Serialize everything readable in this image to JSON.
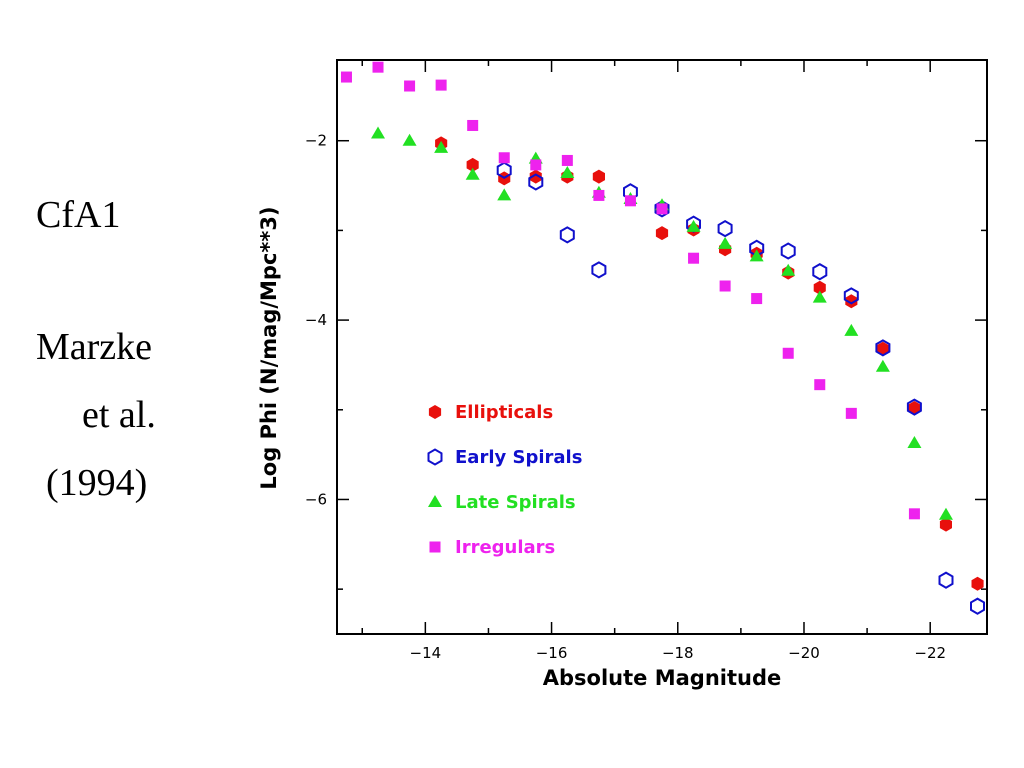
{
  "side_panel": {
    "line1": "CfA1",
    "line2": "Marzke",
    "line3": "et al.",
    "line4": "(1994)"
  },
  "chart_data": {
    "type": "scatter",
    "title": "",
    "xlabel": "Absolute Magnitude",
    "ylabel": "Log Phi (N/mag/Mpc**3)",
    "xlim": [
      -12.6,
      -22.9
    ],
    "ylim": [
      -7.5,
      -1.1
    ],
    "x_ticks": [
      -14,
      -16,
      -18,
      -20,
      -22
    ],
    "y_ticks": [
      -2,
      -4,
      -6
    ],
    "legend_position": "bottom-center-left",
    "series": [
      {
        "name": "Ellipticals",
        "marker": "filled-hexagon",
        "color": "#e8100c",
        "x": [
          -14.25,
          -14.75,
          -15.25,
          -15.75,
          -16.25,
          -16.75,
          -17.75,
          -18.25,
          -18.75,
          -19.25,
          -19.75,
          -20.25,
          -20.75,
          -21.25,
          -21.75,
          -22.25,
          -22.75
        ],
        "y": [
          -2.03,
          -2.27,
          -2.42,
          -2.4,
          -2.4,
          -2.4,
          -3.03,
          -2.99,
          -3.21,
          -3.26,
          -3.47,
          -3.64,
          -3.79,
          -4.32,
          -4.98,
          -6.28,
          -6.94
        ]
      },
      {
        "name": "Early Spirals",
        "marker": "open-hexagon",
        "color": "#1010cc",
        "x": [
          -15.25,
          -15.75,
          -16.25,
          -16.75,
          -17.25,
          -17.75,
          -18.25,
          -18.75,
          -19.25,
          -19.75,
          -20.25,
          -20.75,
          -21.25,
          -21.75,
          -22.25,
          -22.75
        ],
        "y": [
          -2.33,
          -2.46,
          -3.05,
          -3.44,
          -2.57,
          -2.76,
          -2.93,
          -2.98,
          -3.2,
          -3.23,
          -3.46,
          -3.73,
          -4.31,
          -4.97,
          -6.9,
          -7.19
        ]
      },
      {
        "name": "Late Spirals",
        "marker": "filled-triangle",
        "color": "#22e022",
        "x": [
          -13.25,
          -13.75,
          -14.25,
          -14.75,
          -15.25,
          -15.75,
          -16.25,
          -16.75,
          -17.25,
          -17.75,
          -18.25,
          -18.75,
          -19.25,
          -19.75,
          -20.25,
          -20.75,
          -21.25,
          -21.75,
          -22.25
        ],
        "y": [
          -1.92,
          -2.0,
          -2.08,
          -2.38,
          -2.61,
          -2.2,
          -2.36,
          -2.58,
          -2.65,
          -2.72,
          -2.96,
          -3.15,
          -3.29,
          -3.45,
          -3.75,
          -4.12,
          -4.52,
          -5.37,
          -6.17
        ]
      },
      {
        "name": "Irregulars",
        "marker": "filled-square",
        "color": "#ee22ee",
        "x": [
          -12.75,
          -13.25,
          -13.75,
          -14.25,
          -14.75,
          -15.25,
          -15.75,
          -16.25,
          -16.75,
          -17.25,
          -17.75,
          -18.25,
          -18.75,
          -19.25,
          -19.75,
          -20.25,
          -20.75,
          -21.75
        ],
        "y": [
          -1.29,
          -1.18,
          -1.39,
          -1.38,
          -1.83,
          -2.19,
          -2.27,
          -2.22,
          -2.61,
          -2.67,
          -2.76,
          -3.31,
          -3.62,
          -3.76,
          -4.37,
          -4.72,
          -5.04,
          -6.16
        ]
      }
    ]
  }
}
